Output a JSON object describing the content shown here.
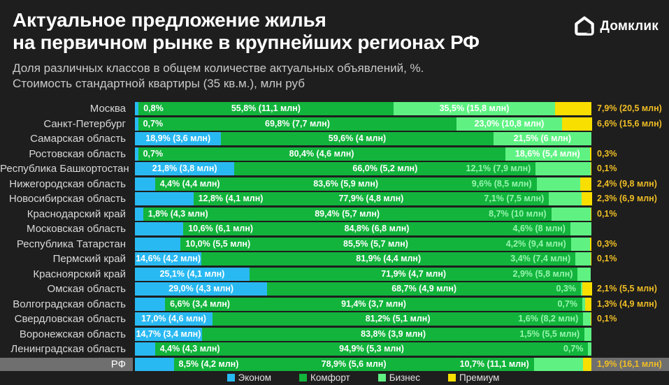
{
  "header": {
    "title_line1": "Актуальное предложение жилья",
    "title_line2": "на первичном рынке в крупнейших регионах РФ",
    "subtitle_line1": "Доля различных классов в общем количестве актуальных объявлений, %.",
    "subtitle_line2": "Стоимость стандартной квартиры (35 кв.м.), млн руб",
    "logo_text": "Домклик"
  },
  "palette": {
    "econom": "#29B9F2",
    "comfort": "#12B43C",
    "business": "#5FF283",
    "premium": "#F8DF00",
    "label_out": "#F0BE25",
    "label_before": "#97F5AE",
    "highlight_bg": "#6F6F6F",
    "background": "#1E1E1E"
  },
  "legend": [
    {
      "key": "econom",
      "label": "Эконом"
    },
    {
      "key": "comfort",
      "label": "Комфорт"
    },
    {
      "key": "business",
      "label": "Бизнес"
    },
    {
      "key": "premium",
      "label": "Премиум"
    }
  ],
  "chart_data": {
    "type": "bar",
    "orientation": "horizontal",
    "stacked": true,
    "unit": "%",
    "xlim": [
      0,
      100
    ],
    "classes": [
      "Эконом",
      "Комфорт",
      "Бизнес",
      "Премиум"
    ],
    "rows": [
      {
        "region": "Москва",
        "highlight": false,
        "segments": [
          {
            "cls": "econom",
            "pct": 0.8,
            "label": "0,8%",
            "pos": "after"
          },
          {
            "cls": "comfort",
            "pct": 55.8,
            "label": "55,8% (11,1 млн)",
            "pos": "in"
          },
          {
            "cls": "business",
            "pct": 35.5,
            "label": "35,5% (15,8 млн)",
            "pos": "in"
          },
          {
            "cls": "premium",
            "pct": 7.9,
            "label": "7,9% (20,5 млн)",
            "pos": "out"
          }
        ]
      },
      {
        "region": "Санкт-Петербург",
        "highlight": false,
        "segments": [
          {
            "cls": "econom",
            "pct": 0.7,
            "label": "0,7%",
            "pos": "after"
          },
          {
            "cls": "comfort",
            "pct": 69.8,
            "label": "69,8% (7,7 млн)",
            "pos": "in"
          },
          {
            "cls": "business",
            "pct": 23.0,
            "label": "23,0% (10,8 млн)",
            "pos": "in"
          },
          {
            "cls": "premium",
            "pct": 6.6,
            "label": "6,6% (15,6 млн)",
            "pos": "out"
          }
        ]
      },
      {
        "region": "Самарская область",
        "highlight": false,
        "segments": [
          {
            "cls": "econom",
            "pct": 18.9,
            "label": "18,9% (3,6 млн)",
            "pos": "in"
          },
          {
            "cls": "comfort",
            "pct": 59.6,
            "label": "59,6% (4 млн)",
            "pos": "in"
          },
          {
            "cls": "business",
            "pct": 21.5,
            "label": "21,5% (6 млн)",
            "pos": "in"
          }
        ]
      },
      {
        "region": "Ростовская область",
        "highlight": false,
        "segments": [
          {
            "cls": "econom",
            "pct": 0.7,
            "label": "0,7%",
            "pos": "after"
          },
          {
            "cls": "comfort",
            "pct": 80.4,
            "label": "80,4% (4,6 млн)",
            "pos": "in"
          },
          {
            "cls": "business",
            "pct": 18.6,
            "label": "18,6% (5,4 млн)",
            "pos": "in"
          },
          {
            "cls": "premium",
            "pct": 0.3,
            "label": "0,3%",
            "pos": "out"
          }
        ]
      },
      {
        "region": "Республика Башкортостан",
        "highlight": false,
        "segments": [
          {
            "cls": "econom",
            "pct": 21.8,
            "label": "21,8% (3,8 млн)",
            "pos": "in"
          },
          {
            "cls": "comfort",
            "pct": 66.0,
            "label": "66,0% (5,2 млн)",
            "pos": "in"
          },
          {
            "cls": "business",
            "pct": 12.1,
            "label": "12,1% (7,9 млн)",
            "pos": "before"
          },
          {
            "cls": "premium",
            "pct": 0.1,
            "label": "0,1%",
            "pos": "out"
          }
        ]
      },
      {
        "region": "Нижегородская область",
        "highlight": false,
        "segments": [
          {
            "cls": "econom",
            "pct": 4.4,
            "label": "4,4% (4,4 млн)",
            "pos": "after"
          },
          {
            "cls": "comfort",
            "pct": 83.6,
            "label": "83,6% (5,9 млн)",
            "pos": "in"
          },
          {
            "cls": "business",
            "pct": 9.6,
            "label": "9,6% (8,5 млн)",
            "pos": "before"
          },
          {
            "cls": "premium",
            "pct": 2.4,
            "label": "2,4% (9,8 млн)",
            "pos": "out"
          }
        ]
      },
      {
        "region": "Новосибирская область",
        "highlight": false,
        "segments": [
          {
            "cls": "econom",
            "pct": 12.8,
            "label": "12,8% (4,1 млн)",
            "pos": "after"
          },
          {
            "cls": "comfort",
            "pct": 77.9,
            "label": "77,9% (4,8 млн)",
            "pos": "in"
          },
          {
            "cls": "business",
            "pct": 7.1,
            "label": "7,1% (7,5 млн)",
            "pos": "before"
          },
          {
            "cls": "premium",
            "pct": 2.3,
            "label": "2,3% (6,9 млн)",
            "pos": "out"
          }
        ]
      },
      {
        "region": "Краснодарский край",
        "highlight": false,
        "segments": [
          {
            "cls": "econom",
            "pct": 1.8,
            "label": "1,8% (4,3 млн)",
            "pos": "after"
          },
          {
            "cls": "comfort",
            "pct": 89.4,
            "label": "89,4% (5,7 млн)",
            "pos": "in"
          },
          {
            "cls": "business",
            "pct": 8.7,
            "label": "8,7% (10 млн)",
            "pos": "before"
          },
          {
            "cls": "premium",
            "pct": 0.1,
            "label": "0,1%",
            "pos": "out"
          }
        ]
      },
      {
        "region": "Московская область",
        "highlight": false,
        "segments": [
          {
            "cls": "econom",
            "pct": 10.6,
            "label": "10,6% (6,1 млн)",
            "pos": "after"
          },
          {
            "cls": "comfort",
            "pct": 84.8,
            "label": "84,8% (6,8 млн)",
            "pos": "in"
          },
          {
            "cls": "business",
            "pct": 4.6,
            "label": "4,6% (8 млн)",
            "pos": "before"
          }
        ]
      },
      {
        "region": "Республика Татарстан",
        "highlight": false,
        "segments": [
          {
            "cls": "econom",
            "pct": 10.0,
            "label": "10,0% (5,5 млн)",
            "pos": "after"
          },
          {
            "cls": "comfort",
            "pct": 85.5,
            "label": "85,5% (5,7 млн)",
            "pos": "in"
          },
          {
            "cls": "business",
            "pct": 4.2,
            "label": "4,2% (9,4 млн)",
            "pos": "before"
          },
          {
            "cls": "premium",
            "pct": 0.3,
            "label": "0,3%",
            "pos": "out"
          }
        ]
      },
      {
        "region": "Пермский край",
        "highlight": false,
        "segments": [
          {
            "cls": "econom",
            "pct": 14.6,
            "label": "14,6% (4,2 млн)",
            "pos": "in"
          },
          {
            "cls": "comfort",
            "pct": 81.9,
            "label": "81,9% (4,4 млн)",
            "pos": "in"
          },
          {
            "cls": "business",
            "pct": 3.4,
            "label": "3,4% (7,4 млн)",
            "pos": "before"
          },
          {
            "cls": "premium",
            "pct": 0.1,
            "label": "0,1%",
            "pos": "out"
          }
        ]
      },
      {
        "region": "Красноярский край",
        "highlight": false,
        "segments": [
          {
            "cls": "econom",
            "pct": 25.1,
            "label": "25,1% (4,1 млн)",
            "pos": "in"
          },
          {
            "cls": "comfort",
            "pct": 71.9,
            "label": "71,9% (4,7 млн)",
            "pos": "in"
          },
          {
            "cls": "business",
            "pct": 2.9,
            "label": "2,9% (5,8 млн)",
            "pos": "before"
          }
        ]
      },
      {
        "region": "Омская область",
        "highlight": false,
        "segments": [
          {
            "cls": "econom",
            "pct": 29.0,
            "label": "29,0% (4,3 млн)",
            "pos": "in"
          },
          {
            "cls": "comfort",
            "pct": 68.7,
            "label": "68,7% (4,9 млн)",
            "pos": "in"
          },
          {
            "cls": "business",
            "pct": 0.3,
            "label": "0,3%",
            "pos": "before"
          },
          {
            "cls": "premium",
            "pct": 2.1,
            "label": "2,1% (5,5 млн)",
            "pos": "out"
          }
        ]
      },
      {
        "region": "Волгоградская область",
        "highlight": false,
        "segments": [
          {
            "cls": "econom",
            "pct": 6.6,
            "label": "6,6% (3,4 млн)",
            "pos": "after"
          },
          {
            "cls": "comfort",
            "pct": 91.4,
            "label": "91,4% (3,7 млн)",
            "pos": "in"
          },
          {
            "cls": "business",
            "pct": 0.7,
            "label": "0,7%",
            "pos": "before"
          },
          {
            "cls": "premium",
            "pct": 1.3,
            "label": "1,3% (4,9 млн)",
            "pos": "out"
          }
        ]
      },
      {
        "region": "Свердловская область",
        "highlight": false,
        "segments": [
          {
            "cls": "econom",
            "pct": 17.0,
            "label": "17,0% (4,6 млн)",
            "pos": "in"
          },
          {
            "cls": "comfort",
            "pct": 81.2,
            "label": "81,2% (5,1 млн)",
            "pos": "in"
          },
          {
            "cls": "business",
            "pct": 1.6,
            "label": "1,6% (8,2 млн)",
            "pos": "before"
          },
          {
            "cls": "premium",
            "pct": 0.1,
            "label": "0,1%",
            "pos": "out"
          }
        ]
      },
      {
        "region": "Воронежская область",
        "highlight": false,
        "segments": [
          {
            "cls": "econom",
            "pct": 14.7,
            "label": "14,7% (3,4 млн)",
            "pos": "in"
          },
          {
            "cls": "comfort",
            "pct": 83.8,
            "label": "83,8% (3,9 млн)",
            "pos": "in"
          },
          {
            "cls": "business",
            "pct": 1.5,
            "label": "1,5% (5,5 млн)",
            "pos": "before"
          }
        ]
      },
      {
        "region": "Ленинградская область",
        "highlight": false,
        "segments": [
          {
            "cls": "econom",
            "pct": 4.4,
            "label": "4,4% (4,3 млн)",
            "pos": "after"
          },
          {
            "cls": "comfort",
            "pct": 94.9,
            "label": "94,9% (5,3 млн)",
            "pos": "in"
          },
          {
            "cls": "business",
            "pct": 0.7,
            "label": "0,7%",
            "pos": "before"
          }
        ]
      },
      {
        "region": "РФ",
        "highlight": true,
        "segments": [
          {
            "cls": "econom",
            "pct": 8.5,
            "label": "8,5% (4,2 млн)",
            "pos": "after"
          },
          {
            "cls": "comfort",
            "pct": 78.9,
            "label": "78,9% (5,6 млн)",
            "pos": "in"
          },
          {
            "cls": "business",
            "pct": 10.7,
            "label": "10,7% (11,1 млн)",
            "pos": "before",
            "label_color": "#FFFFFF"
          },
          {
            "cls": "premium",
            "pct": 1.9,
            "label": "1,9% (16,1 млн)",
            "pos": "out"
          }
        ]
      }
    ]
  }
}
